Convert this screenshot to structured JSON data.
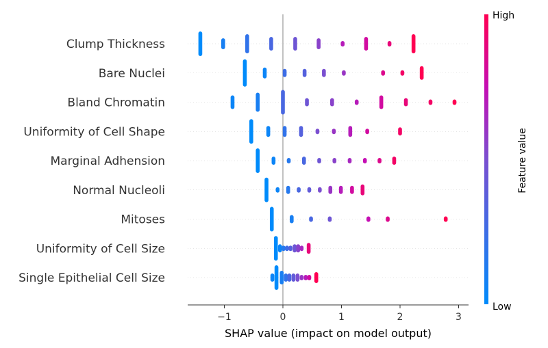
{
  "chart_data": {
    "type": "scatter",
    "subtype": "shap-beeswarm",
    "title": "",
    "xlabel": "SHAP value (impact on model output)",
    "xlim": [
      -1.62,
      3.0
    ],
    "xticks": [
      -1,
      0,
      1,
      2,
      3
    ],
    "xtick_labels": [
      "−1",
      "0",
      "1",
      "2",
      "3"
    ],
    "colorbar": {
      "label": "Feature value",
      "high_label": "High",
      "low_label": "Low",
      "high_color": "#ff0052",
      "low_color": "#008bfb"
    },
    "features": [
      {
        "name": "Clump Thickness",
        "points": [
          {
            "x": -1.41,
            "v": 0.0,
            "n": 8
          },
          {
            "x": -1.02,
            "v": 0.1,
            "n": 3
          },
          {
            "x": -0.61,
            "v": 0.2,
            "n": 6
          },
          {
            "x": -0.2,
            "v": 0.3,
            "n": 4
          },
          {
            "x": 0.21,
            "v": 0.45,
            "n": 4
          },
          {
            "x": 0.61,
            "v": 0.55,
            "n": 3
          },
          {
            "x": 1.02,
            "v": 0.7,
            "n": 1
          },
          {
            "x": 1.42,
            "v": 0.8,
            "n": 4
          },
          {
            "x": 1.82,
            "v": 0.9,
            "n": 1
          },
          {
            "x": 2.23,
            "v": 1.0,
            "n": 6
          }
        ]
      },
      {
        "name": "Bare Nuclei",
        "points": [
          {
            "x": -0.65,
            "v": 0.0,
            "n": 9
          },
          {
            "x": -0.31,
            "v": 0.05,
            "n": 3
          },
          {
            "x": 0.03,
            "v": 0.25,
            "n": 2
          },
          {
            "x": 0.37,
            "v": 0.35,
            "n": 2
          },
          {
            "x": 0.7,
            "v": 0.5,
            "n": 2
          },
          {
            "x": 1.04,
            "v": 0.6,
            "n": 1
          },
          {
            "x": 1.71,
            "v": 0.85,
            "n": 1
          },
          {
            "x": 2.04,
            "v": 0.95,
            "n": 1
          },
          {
            "x": 2.37,
            "v": 1.0,
            "n": 4
          }
        ]
      },
      {
        "name": "Bland Chromatin",
        "points": [
          {
            "x": -0.86,
            "v": 0.05,
            "n": 4
          },
          {
            "x": -0.43,
            "v": 0.1,
            "n": 6
          },
          {
            "x": 0.0,
            "v": 0.3,
            "n": 8
          },
          {
            "x": 0.41,
            "v": 0.45,
            "n": 2
          },
          {
            "x": 0.84,
            "v": 0.55,
            "n": 2
          },
          {
            "x": 1.26,
            "v": 0.7,
            "n": 1
          },
          {
            "x": 1.68,
            "v": 0.8,
            "n": 4
          },
          {
            "x": 2.1,
            "v": 0.9,
            "n": 2
          },
          {
            "x": 2.52,
            "v": 0.95,
            "n": 1
          },
          {
            "x": 2.93,
            "v": 1.0,
            "n": 1
          }
        ]
      },
      {
        "name": "Uniformity of Cell Shape",
        "points": [
          {
            "x": -0.54,
            "v": 0.0,
            "n": 8
          },
          {
            "x": -0.25,
            "v": 0.05,
            "n": 3
          },
          {
            "x": 0.03,
            "v": 0.2,
            "n": 3
          },
          {
            "x": 0.31,
            "v": 0.35,
            "n": 3
          },
          {
            "x": 0.59,
            "v": 0.5,
            "n": 1
          },
          {
            "x": 0.87,
            "v": 0.6,
            "n": 1
          },
          {
            "x": 1.15,
            "v": 0.7,
            "n": 3
          },
          {
            "x": 1.44,
            "v": 0.8,
            "n": 1
          },
          {
            "x": 2.0,
            "v": 0.95,
            "n": 2
          }
        ]
      },
      {
        "name": "Marginal Adhension",
        "points": [
          {
            "x": -0.43,
            "v": 0.0,
            "n": 8
          },
          {
            "x": -0.16,
            "v": 0.05,
            "n": 2
          },
          {
            "x": 0.1,
            "v": 0.15,
            "n": 1
          },
          {
            "x": 0.36,
            "v": 0.3,
            "n": 2
          },
          {
            "x": 0.62,
            "v": 0.45,
            "n": 1
          },
          {
            "x": 0.88,
            "v": 0.55,
            "n": 1
          },
          {
            "x": 1.14,
            "v": 0.65,
            "n": 1
          },
          {
            "x": 1.4,
            "v": 0.75,
            "n": 1
          },
          {
            "x": 1.65,
            "v": 0.85,
            "n": 1
          },
          {
            "x": 1.9,
            "v": 0.95,
            "n": 2
          }
        ]
      },
      {
        "name": "Normal Nucleoli",
        "points": [
          {
            "x": -0.28,
            "v": 0.0,
            "n": 8
          },
          {
            "x": -0.09,
            "v": 0.05,
            "n": 1
          },
          {
            "x": 0.09,
            "v": 0.15,
            "n": 2
          },
          {
            "x": 0.27,
            "v": 0.3,
            "n": 1
          },
          {
            "x": 0.45,
            "v": 0.4,
            "n": 1
          },
          {
            "x": 0.63,
            "v": 0.5,
            "n": 1
          },
          {
            "x": 0.81,
            "v": 0.6,
            "n": 2
          },
          {
            "x": 0.99,
            "v": 0.7,
            "n": 2
          },
          {
            "x": 1.18,
            "v": 0.8,
            "n": 2
          },
          {
            "x": 1.36,
            "v": 0.9,
            "n": 3
          }
        ]
      },
      {
        "name": "Mitoses",
        "points": [
          {
            "x": -0.19,
            "v": 0.0,
            "n": 8
          },
          {
            "x": 0.15,
            "v": 0.1,
            "n": 2
          },
          {
            "x": 0.48,
            "v": 0.3,
            "n": 1
          },
          {
            "x": 0.8,
            "v": 0.45,
            "n": 1
          },
          {
            "x": 1.46,
            "v": 0.75,
            "n": 1
          },
          {
            "x": 1.79,
            "v": 0.85,
            "n": 1
          },
          {
            "x": 2.78,
            "v": 1.0,
            "n": 1
          }
        ]
      },
      {
        "name": "Uniformity of Cell Size",
        "points": [
          {
            "x": -0.12,
            "v": 0.0,
            "n": 8
          },
          {
            "x": -0.05,
            "v": 0.05,
            "n": 2
          },
          {
            "x": 0.01,
            "v": 0.15,
            "n": 1
          },
          {
            "x": 0.07,
            "v": 0.25,
            "n": 1
          },
          {
            "x": 0.13,
            "v": 0.35,
            "n": 1
          },
          {
            "x": 0.2,
            "v": 0.45,
            "n": 2
          },
          {
            "x": 0.26,
            "v": 0.55,
            "n": 2
          },
          {
            "x": 0.32,
            "v": 0.65,
            "n": 1
          },
          {
            "x": 0.44,
            "v": 0.9,
            "n": 3
          }
        ]
      },
      {
        "name": "Single Epithelial Cell Size",
        "points": [
          {
            "x": -0.11,
            "v": 0.0,
            "n": 8
          },
          {
            "x": -0.18,
            "v": 0.05,
            "n": 2
          },
          {
            "x": -0.02,
            "v": 0.1,
            "n": 4
          },
          {
            "x": 0.05,
            "v": 0.2,
            "n": 2
          },
          {
            "x": 0.11,
            "v": 0.3,
            "n": 2
          },
          {
            "x": 0.18,
            "v": 0.4,
            "n": 2
          },
          {
            "x": 0.25,
            "v": 0.5,
            "n": 2
          },
          {
            "x": 0.32,
            "v": 0.6,
            "n": 1
          },
          {
            "x": 0.39,
            "v": 0.7,
            "n": 1
          },
          {
            "x": 0.45,
            "v": 0.8,
            "n": 1
          },
          {
            "x": 0.57,
            "v": 1.0,
            "n": 3
          }
        ]
      }
    ]
  }
}
